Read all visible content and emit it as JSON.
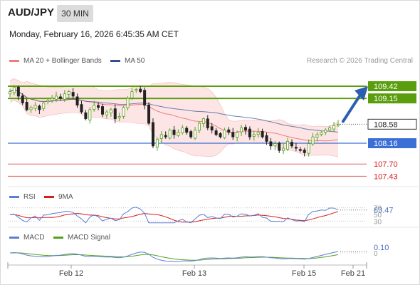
{
  "header": {
    "pair": "AUD/JPY",
    "timeframe": "30 MIN",
    "datetime": "Monday, February 16, 2026 6:45:35 AM CET",
    "credit": "Research © 2026 Trading Central"
  },
  "colors": {
    "bollinger": "#f07c7c",
    "ma50": "#2f4f8f",
    "green_level": "#5a9e0e",
    "blue_level": "#3b6fd6",
    "red_level": "#e06060",
    "current": "#222222",
    "arrow": "#2b5fae",
    "band_fill": "#fde0e0",
    "candle_up": "#55a11b",
    "candle_down": "#222222",
    "rsi": "#5b7fd6",
    "rsi_ma": "#d62020",
    "macd": "#5b7fd6",
    "macd_signal": "#55a11b"
  },
  "chart_data": [
    {
      "type": "candlestick",
      "panel": "price",
      "legend": [
        {
          "name": "MA 20 + Bollinger Bands",
          "color": "#f07c7c"
        },
        {
          "name": "MA 50",
          "color": "#2f4f8f"
        }
      ],
      "x": [
        "Feb 12",
        "Feb 13",
        "Feb 15",
        "Feb 21"
      ],
      "levels": [
        {
          "value": 109.42,
          "label": "109.42",
          "kind": "resistance"
        },
        {
          "value": 109.15,
          "label": "109.15",
          "kind": "resistance"
        },
        {
          "value": 108.58,
          "label": "108.58",
          "kind": "current"
        },
        {
          "value": 108.16,
          "label": "108.16",
          "kind": "pivot"
        },
        {
          "value": 107.7,
          "label": "107.70",
          "kind": "support"
        },
        {
          "value": 107.43,
          "label": "107.43",
          "kind": "support"
        }
      ],
      "ylim": [
        107.2,
        109.75
      ],
      "closes": [
        109.3,
        109.4,
        109.2,
        109.05,
        108.9,
        108.95,
        109.0,
        108.9,
        109.05,
        109.1,
        109.15,
        109.2,
        109.15,
        109.25,
        109.3,
        109.2,
        109.0,
        108.85,
        108.7,
        108.9,
        109.0,
        108.95,
        108.8,
        108.85,
        108.9,
        108.7,
        108.75,
        108.95,
        109.15,
        109.3,
        109.35,
        109.3,
        109.0,
        108.6,
        108.1,
        108.25,
        108.35,
        108.3,
        108.45,
        108.35,
        108.4,
        108.5,
        108.4,
        108.3,
        108.45,
        108.6,
        108.7,
        108.5,
        108.45,
        108.35,
        108.3,
        108.45,
        108.4,
        108.3,
        108.4,
        108.5,
        108.45,
        108.3,
        108.35,
        108.4,
        108.3,
        108.2,
        108.1,
        108.15,
        108.0,
        108.05,
        108.2,
        108.1,
        108.05,
        108.0,
        107.95,
        108.15,
        108.3,
        108.35,
        108.4,
        108.45,
        108.5,
        108.55,
        108.58
      ]
    },
    {
      "type": "line",
      "panel": "rsi",
      "legend": [
        {
          "name": "RSI",
          "color": "#5b7fd6"
        },
        {
          "name": "9MA",
          "color": "#d62020"
        }
      ],
      "levels": [
        70,
        50,
        30
      ],
      "current": 63.47,
      "current_label": "63.47",
      "ylim": [
        20,
        80
      ]
    },
    {
      "type": "line",
      "panel": "macd",
      "legend": [
        {
          "name": "MACD",
          "color": "#5b7fd6"
        },
        {
          "name": "MACD Signal",
          "color": "#55a11b"
        }
      ],
      "current": 0.1,
      "current_label": "0.10",
      "zero_label": "0"
    }
  ]
}
